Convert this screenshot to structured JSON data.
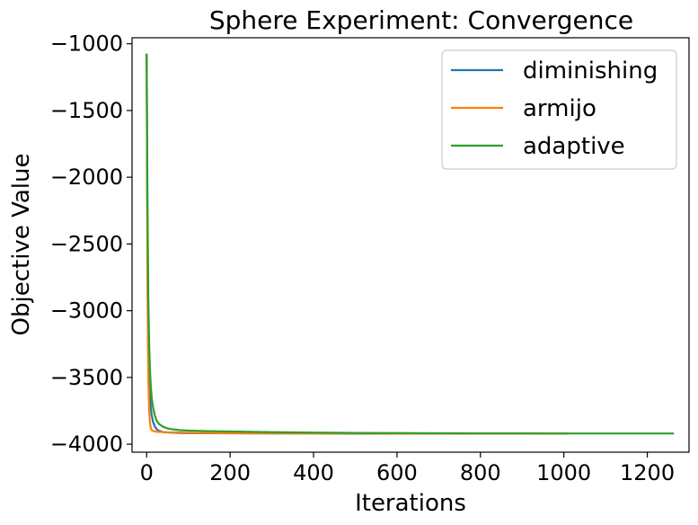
{
  "chart_data": {
    "type": "line",
    "title": "Sphere Experiment: Convergence",
    "xlabel": "Iterations",
    "ylabel": "Objective Value",
    "xlim": [
      -35,
      1300
    ],
    "ylim": [
      -4060,
      -955
    ],
    "xticks": [
      0,
      200,
      400,
      600,
      800,
      1000,
      1200
    ],
    "yticks": [
      -1000,
      -1500,
      -2000,
      -2500,
      -3000,
      -3500,
      -4000
    ],
    "xtick_labels": [
      "0",
      "200",
      "400",
      "600",
      "800",
      "1000",
      "1200"
    ],
    "ytick_labels": [
      "−1000",
      "−1500",
      "−2000",
      "−2500",
      "−3000",
      "−3500",
      "−4000"
    ],
    "grid": false,
    "legend_position": "top-right",
    "series": [
      {
        "name": "diminishing",
        "color": "#1f77b4",
        "x": [
          0,
          2,
          4,
          6,
          8,
          10,
          12,
          15,
          20,
          25,
          30,
          40,
          50,
          60,
          80,
          100,
          150,
          200,
          300,
          400,
          500,
          600,
          700,
          800,
          900,
          1008
        ],
        "y": [
          -1080,
          -2500,
          -3150,
          -3480,
          -3640,
          -3730,
          -3780,
          -3830,
          -3870,
          -3890,
          -3900,
          -3910,
          -3912,
          -3914,
          -3916,
          -3917,
          -3918,
          -3919,
          -3920,
          -3920,
          -3921,
          -3921,
          -3921,
          -3921,
          -3921,
          -3921
        ]
      },
      {
        "name": "armijo",
        "color": "#ff7f0e",
        "x": [
          0,
          2,
          4,
          6,
          8,
          10,
          12,
          15,
          20,
          30,
          50,
          100,
          200,
          300,
          400,
          500,
          600,
          700,
          800,
          900,
          1008
        ],
        "y": [
          -1080,
          -2800,
          -3500,
          -3750,
          -3840,
          -3880,
          -3895,
          -3900,
          -3905,
          -3908,
          -3911,
          -3914,
          -3918,
          -3919,
          -3920,
          -3920,
          -3921,
          -3921,
          -3921,
          -3921,
          -3921
        ]
      },
      {
        "name": "adaptive",
        "color": "#2ca02c",
        "x": [
          0,
          2,
          4,
          6,
          8,
          10,
          12,
          15,
          20,
          25,
          30,
          40,
          50,
          60,
          80,
          100,
          150,
          200,
          300,
          400,
          500,
          600,
          700,
          800,
          900,
          1000,
          1100,
          1200,
          1262
        ],
        "y": [
          -1080,
          -2200,
          -2900,
          -3250,
          -3450,
          -3570,
          -3650,
          -3720,
          -3790,
          -3830,
          -3850,
          -3870,
          -3882,
          -3888,
          -3895,
          -3898,
          -3902,
          -3905,
          -3910,
          -3913,
          -3916,
          -3917,
          -3918,
          -3919,
          -3919,
          -3920,
          -3920,
          -3920,
          -3920
        ]
      }
    ]
  }
}
